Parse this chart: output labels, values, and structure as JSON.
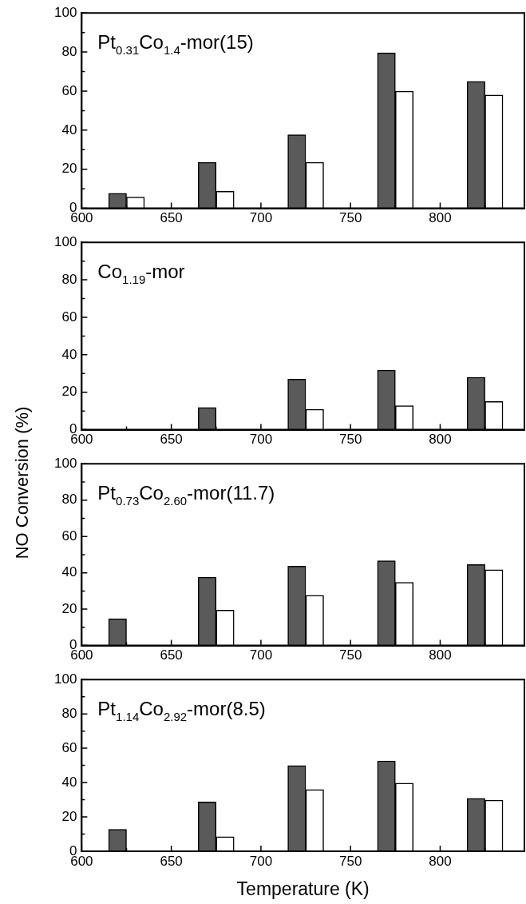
{
  "chart_data": [
    {
      "type": "bar",
      "title": "Pt$_{0.31}$Co$_{1.4}$-mor(15)",
      "xlim": [
        600,
        847
      ],
      "xticks": [
        600,
        {
          "value": 625,
          "label": null
        },
        650,
        {
          "value": 675,
          "label": null
        },
        700,
        {
          "value": 725,
          "label": null
        },
        750,
        {
          "value": 775,
          "label": null
        },
        800,
        {
          "value": 825,
          "label": null
        }
      ],
      "ylim": [
        0,
        100
      ],
      "yticks": [
        0,
        {
          "value": 10,
          "label": null
        },
        20,
        {
          "value": 30,
          "label": null
        },
        40,
        {
          "value": 50,
          "label": null
        },
        60,
        {
          "value": 70,
          "label": null
        },
        80,
        {
          "value": 90,
          "label": null
        },
        100
      ],
      "grid": false,
      "legend": false,
      "series": [
        {
          "color": "#5a5a5a",
          "x": [
            620,
            670,
            720,
            770,
            820
          ],
          "values": [
            7.7,
            23.5,
            37.7,
            79.6,
            65
          ]
        },
        {
          "color": "#ffffff",
          "x": [
            630,
            680,
            730,
            780,
            830
          ],
          "values": [
            5.7,
            8.7,
            23.5,
            59.9,
            58
          ]
        }
      ]
    },
    {
      "type": "bar",
      "title": "Co$_{1.19}$-mor",
      "xlim": [
        600,
        847
      ],
      "xticks": [
        600,
        {
          "value": 625,
          "label": null
        },
        650,
        {
          "value": 675,
          "label": null
        },
        700,
        {
          "value": 725,
          "label": null
        },
        750,
        {
          "value": 775,
          "label": null
        },
        800,
        {
          "value": 825,
          "label": null
        }
      ],
      "ylim": [
        0,
        100
      ],
      "yticks": [
        0,
        {
          "value": 10,
          "label": null
        },
        20,
        {
          "value": 30,
          "label": null
        },
        40,
        {
          "value": 50,
          "label": null
        },
        60,
        {
          "value": 70,
          "label": null
        },
        80,
        {
          "value": 90,
          "label": null
        },
        100
      ],
      "grid": false,
      "legend": false,
      "series": [
        {
          "color": "#5a5a5a",
          "x": [
            670,
            720,
            770,
            820
          ],
          "values": [
            11.9,
            27,
            31.8,
            28
          ]
        },
        {
          "color": "#ffffff",
          "x": [
            730,
            780,
            830
          ],
          "values": [
            10.9,
            12.8,
            15
          ]
        }
      ]
    },
    {
      "type": "bar",
      "title": "Pt$_{0.73}$Co$_{2.60}$-mor(11.7)",
      "ylabel": "NO Conversion (%)",
      "xlim": [
        600,
        847
      ],
      "xticks": [
        600,
        {
          "value": 625,
          "label": null
        },
        650,
        {
          "value": 675,
          "label": null
        },
        700,
        {
          "value": 725,
          "label": null
        },
        750,
        {
          "value": 775,
          "label": null
        },
        800,
        {
          "value": 825,
          "label": null
        }
      ],
      "ylim": [
        0,
        100
      ],
      "yticks": [
        0,
        {
          "value": 10,
          "label": null
        },
        20,
        {
          "value": 30,
          "label": null
        },
        40,
        {
          "value": 50,
          "label": null
        },
        60,
        {
          "value": 70,
          "label": null
        },
        80,
        {
          "value": 90,
          "label": null
        },
        100
      ],
      "grid": false,
      "legend": false,
      "series": [
        {
          "color": "#5a5a5a",
          "x": [
            620,
            670,
            720,
            770,
            820
          ],
          "values": [
            14.7,
            37.6,
            43.6,
            46.6,
            44.5
          ]
        },
        {
          "color": "#ffffff",
          "x": [
            680,
            730,
            780,
            830
          ],
          "values": [
            19.5,
            27.6,
            34.7,
            41.7
          ]
        }
      ]
    },
    {
      "type": "bar",
      "title": "Pt$_{1.14}$Co$_{2.92}$-mor(8.5)",
      "xlabel": "Temperature (K)",
      "xlim": [
        600,
        847
      ],
      "xticks": [
        600,
        {
          "value": 625,
          "label": null
        },
        650,
        {
          "value": 675,
          "label": null
        },
        700,
        {
          "value": 725,
          "label": null
        },
        750,
        {
          "value": 775,
          "label": null
        },
        800,
        {
          "value": 825,
          "label": null
        }
      ],
      "ylim": [
        0,
        100
      ],
      "yticks": [
        0,
        {
          "value": 10,
          "label": null
        },
        20,
        {
          "value": 30,
          "label": null
        },
        40,
        {
          "value": 50,
          "label": null
        },
        60,
        {
          "value": 70,
          "label": null
        },
        80,
        {
          "value": 90,
          "label": null
        },
        100
      ],
      "grid": false,
      "legend": false,
      "series": [
        {
          "color": "#5a5a5a",
          "x": [
            620,
            670,
            720,
            770,
            820
          ],
          "values": [
            12.8,
            28.7,
            49.9,
            52.6,
            30.8
          ]
        },
        {
          "color": "#ffffff",
          "x": [
            680,
            730,
            780,
            830
          ],
          "values": [
            8.5,
            35.9,
            39.7,
            29.7
          ]
        }
      ]
    }
  ]
}
